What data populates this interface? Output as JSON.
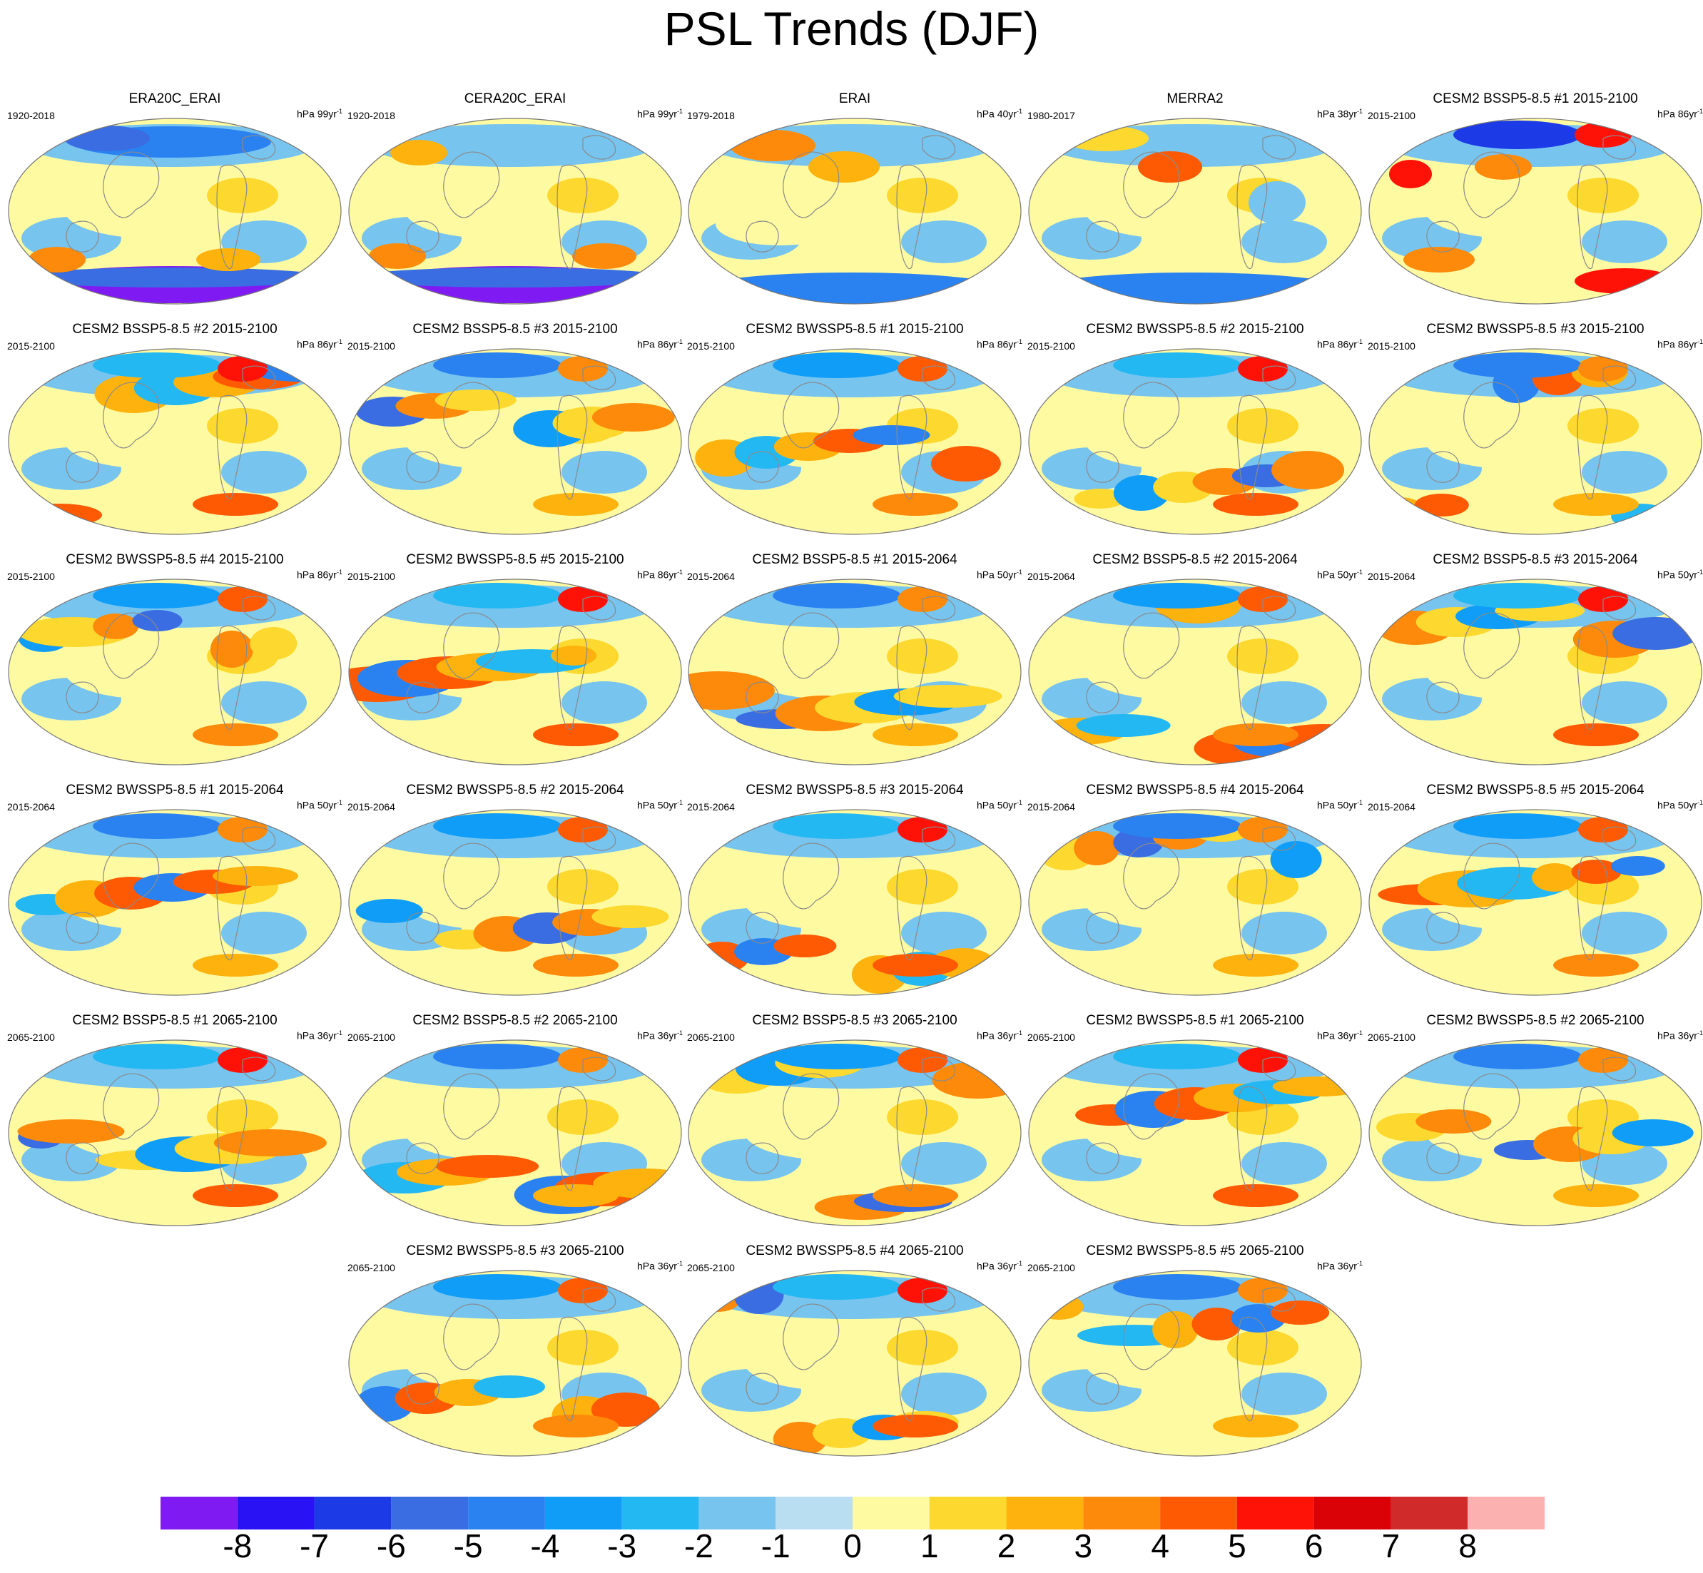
{
  "title": "PSL Trends (DJF)",
  "colors": {
    "levels": [
      "#7f1bf2",
      "#2913f4",
      "#1c3be7",
      "#3a6de2",
      "#2a82f1",
      "#109df7",
      "#24b8f3",
      "#77c4ef",
      "#b9def2",
      "#fefaa1",
      "#fdd82e",
      "#fdb20e",
      "#fd8a0a",
      "#fe5a04",
      "#fe1208",
      "#da0207",
      "#d02a2a",
      "#fcb1b1"
    ],
    "land_outline": "#8a8a8a"
  },
  "colorbar": {
    "ticks": [
      "-8",
      "-7",
      "-6",
      "-5",
      "-4",
      "-3",
      "-2",
      "-1",
      "0",
      "1",
      "2",
      "3",
      "4",
      "5",
      "6",
      "7",
      "8"
    ]
  },
  "panels": [
    {
      "title": "ERA20C_ERAI",
      "years": "1920-2018",
      "units": "hPa 99yr",
      "sup": "-1"
    },
    {
      "title": "CERA20C_ERAI",
      "years": "1920-2018",
      "units": "hPa 99yr",
      "sup": "-1"
    },
    {
      "title": "ERAI",
      "years": "1979-2018",
      "units": "hPa 40yr",
      "sup": "-1"
    },
    {
      "title": "MERRA2",
      "years": "1980-2017",
      "units": "hPa 38yr",
      "sup": "-1"
    },
    {
      "title": "CESM2 BSSP5-8.5 #1 2015-2100",
      "years": "2015-2100",
      "units": "hPa 86yr",
      "sup": "-1"
    },
    {
      "title": "CESM2 BSSP5-8.5 #2 2015-2100",
      "years": "2015-2100",
      "units": "hPa 86yr",
      "sup": "-1"
    },
    {
      "title": "CESM2 BSSP5-8.5 #3 2015-2100",
      "years": "2015-2100",
      "units": "hPa 86yr",
      "sup": "-1"
    },
    {
      "title": "CESM2 BWSSP5-8.5 #1 2015-2100",
      "years": "2015-2100",
      "units": "hPa 86yr",
      "sup": "-1"
    },
    {
      "title": "CESM2 BWSSP5-8.5 #2 2015-2100",
      "years": "2015-2100",
      "units": "hPa 86yr",
      "sup": "-1"
    },
    {
      "title": "CESM2 BWSSP5-8.5 #3 2015-2100",
      "years": "2015-2100",
      "units": "hPa 86yr",
      "sup": "-1"
    },
    {
      "title": "CESM2 BWSSP5-8.5 #4 2015-2100",
      "years": "2015-2100",
      "units": "hPa 86yr",
      "sup": "-1"
    },
    {
      "title": "CESM2 BWSSP5-8.5 #5 2015-2100",
      "years": "2015-2100",
      "units": "hPa 86yr",
      "sup": "-1"
    },
    {
      "title": "CESM2 BSSP5-8.5 #1 2015-2064",
      "years": "2015-2064",
      "units": "hPa 50yr",
      "sup": "-1"
    },
    {
      "title": "CESM2 BSSP5-8.5 #2 2015-2064",
      "years": "2015-2064",
      "units": "hPa 50yr",
      "sup": "-1"
    },
    {
      "title": "CESM2 BSSP5-8.5 #3 2015-2064",
      "years": "2015-2064",
      "units": "hPa 50yr",
      "sup": "-1"
    },
    {
      "title": "CESM2 BWSSP5-8.5 #1 2015-2064",
      "years": "2015-2064",
      "units": "hPa 50yr",
      "sup": "-1"
    },
    {
      "title": "CESM2 BWSSP5-8.5 #2 2015-2064",
      "years": "2015-2064",
      "units": "hPa 50yr",
      "sup": "-1"
    },
    {
      "title": "CESM2 BWSSP5-8.5 #3 2015-2064",
      "years": "2015-2064",
      "units": "hPa 50yr",
      "sup": "-1"
    },
    {
      "title": "CESM2 BWSSP5-8.5 #4 2015-2064",
      "years": "2015-2064",
      "units": "hPa 50yr",
      "sup": "-1"
    },
    {
      "title": "CESM2 BWSSP5-8.5 #5 2015-2064",
      "years": "2015-2064",
      "units": "hPa 50yr",
      "sup": "-1"
    },
    {
      "title": "CESM2 BSSP5-8.5 #1 2065-2100",
      "years": "2065-2100",
      "units": "hPa 36yr",
      "sup": "-1"
    },
    {
      "title": "CESM2 BSSP5-8.5 #2 2065-2100",
      "years": "2065-2100",
      "units": "hPa 36yr",
      "sup": "-1"
    },
    {
      "title": "CESM2 BSSP5-8.5 #3 2065-2100",
      "years": "2065-2100",
      "units": "hPa 36yr",
      "sup": "-1"
    },
    {
      "title": "CESM2 BWSSP5-8.5 #1 2065-2100",
      "years": "2065-2100",
      "units": "hPa 36yr",
      "sup": "-1"
    },
    {
      "title": "CESM2 BWSSP5-8.5 #2 2065-2100",
      "years": "2065-2100",
      "units": "hPa 36yr",
      "sup": "-1"
    },
    {
      "title": "CESM2 BWSSP5-8.5 #3 2065-2100",
      "years": "2065-2100",
      "units": "hPa 36yr",
      "sup": "-1"
    },
    {
      "title": "CESM2 BWSSP5-8.5 #4 2065-2100",
      "years": "2065-2100",
      "units": "hPa 36yr",
      "sup": "-1"
    },
    {
      "title": "CESM2 BWSSP5-8.5 #5 2065-2100",
      "years": "2065-2100",
      "units": "hPa 36yr",
      "sup": "-1"
    }
  ]
}
